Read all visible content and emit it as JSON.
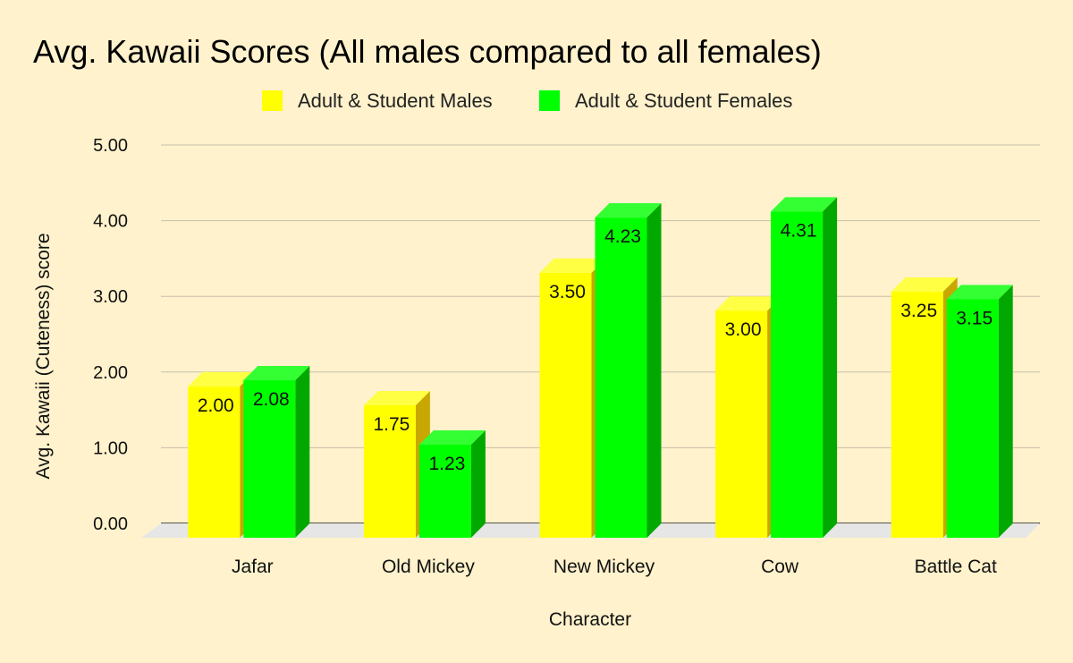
{
  "chart_data": {
    "type": "bar",
    "title": "Avg. Kawaii Scores (All males compared to all females)",
    "xlabel": "Character",
    "ylabel": "Avg. Kawaii (Cuteness) score",
    "categories": [
      "Jafar",
      "Old Mickey",
      "New Mickey",
      "Cow",
      "Battle Cat"
    ],
    "series": [
      {
        "name": "Adult & Student Males",
        "values": [
          2.0,
          1.75,
          3.5,
          3.0,
          3.25
        ],
        "labels": [
          "2.00",
          "1.75",
          "3.50",
          "3.00",
          "3.25"
        ],
        "color": "#ffff00",
        "side_color": "#c8a800",
        "top_color": "#ffff44"
      },
      {
        "name": "Adult & Student Females",
        "values": [
          2.08,
          1.23,
          4.23,
          4.31,
          3.15
        ],
        "labels": [
          "2.08",
          "1.23",
          "4.23",
          "4.31",
          "3.15"
        ],
        "color": "#00ff00",
        "side_color": "#00a800",
        "top_color": "#33ff33"
      }
    ],
    "yticks": [
      "0.00",
      "1.00",
      "2.00",
      "3.00",
      "4.00",
      "5.00"
    ],
    "ylim": [
      0,
      5
    ],
    "grid": true,
    "legend_position": "top-center",
    "three_d": true,
    "colors": {
      "background": "#fff2cc",
      "gridline": "#c8c0a8",
      "floor": "#e6e6e6"
    }
  }
}
